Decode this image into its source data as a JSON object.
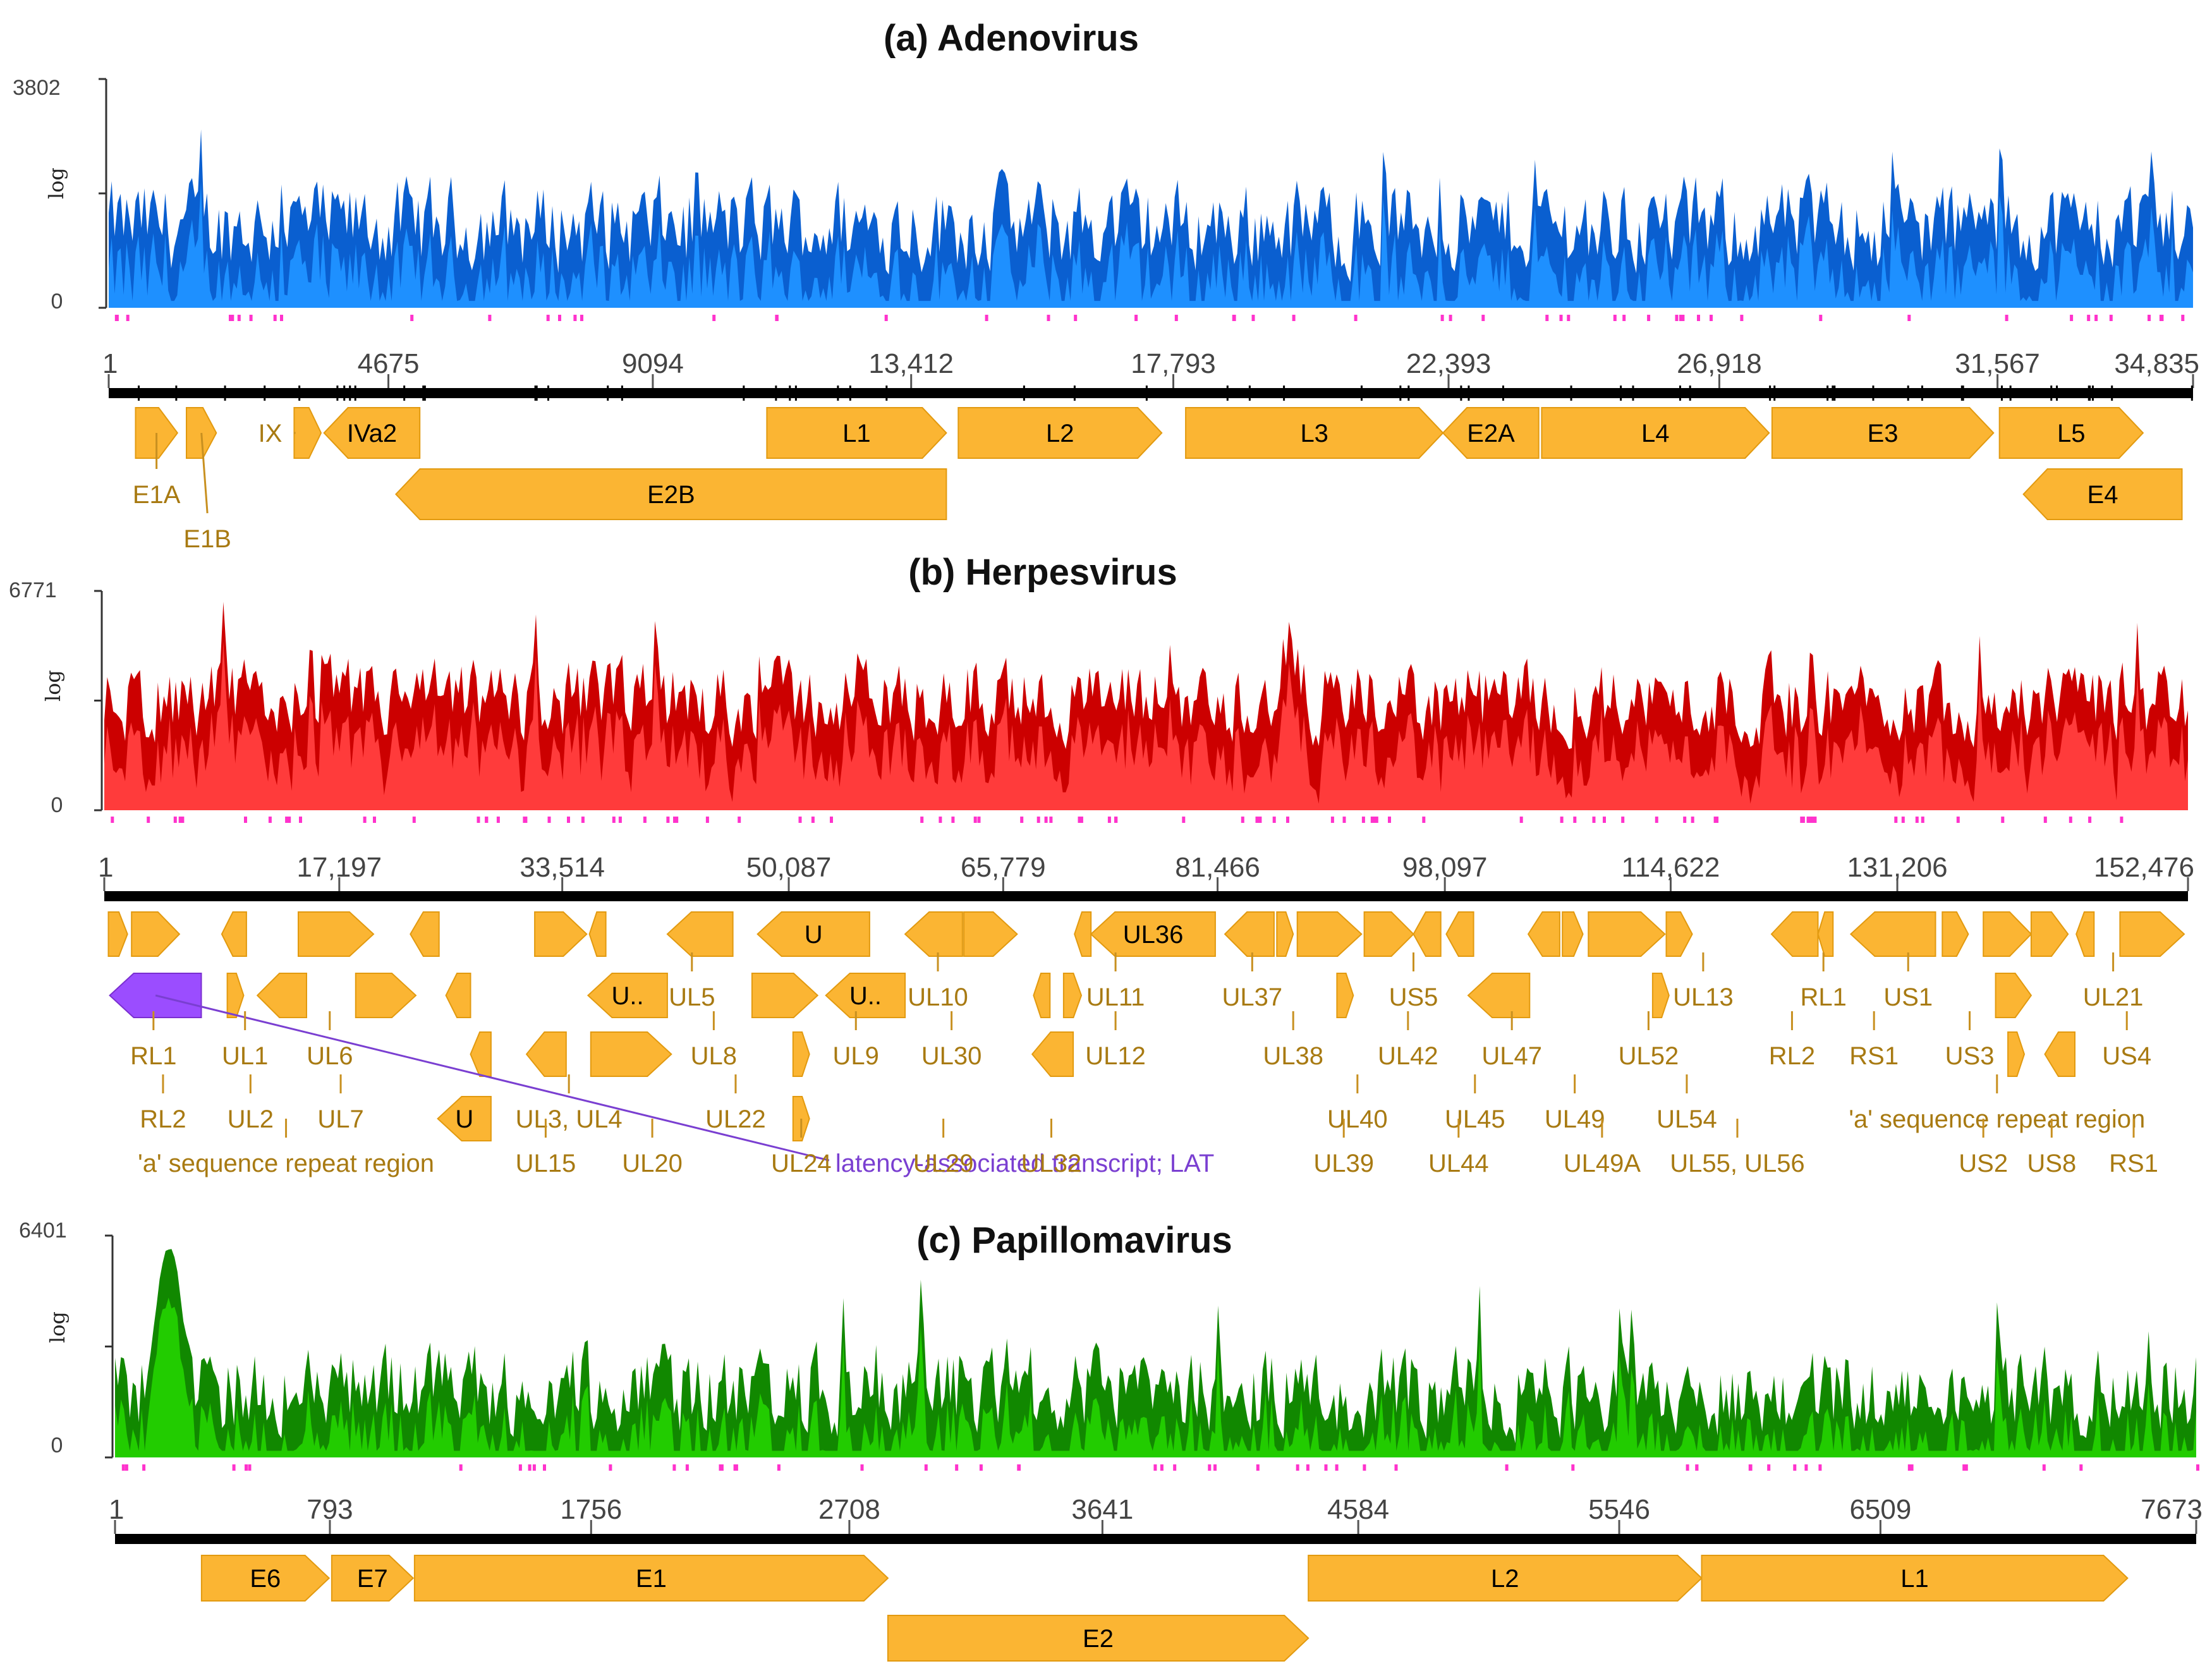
{
  "chart_data": [
    {
      "type": "area",
      "title": "(a) Adenovirus",
      "color": "#1e90ff",
      "dark_color": "#0a5fd0",
      "ylabel": "log",
      "ymax_label": "3802",
      "ymid_label": "",
      "ymin_label": "0",
      "genome_length": 34835,
      "x_ticks": [
        1,
        4675,
        9094,
        13412,
        17793,
        22393,
        26918,
        31567,
        34835
      ],
      "x_tick_labels": [
        "1",
        "4675",
        "9094",
        "13,412",
        "17,793",
        "22,393",
        "26,918",
        "31,567",
        "34,835"
      ],
      "coverage_profile": {
        "base": 0.36,
        "noise": 0.22,
        "peaks": []
      },
      "genes": [
        {
          "name": "E1A",
          "start": 450,
          "end": 1150,
          "strand": "+",
          "row": 0,
          "label_pos": "below",
          "label_x": 800,
          "label_row": 1
        },
        {
          "name": "E1B",
          "start": 1300,
          "end": 1800,
          "strand": "+",
          "row": 0,
          "label_pos": "below",
          "label_x": 1650,
          "label_row": 2
        },
        {
          "name": "IX",
          "start": 3100,
          "end": 3550,
          "strand": "+",
          "row": 0,
          "label_pos": "left",
          "label_x": 2700,
          "label_row": 0
        },
        {
          "name": "IVa2",
          "start": 3600,
          "end": 5200,
          "strand": "-",
          "row": 0,
          "label_pos": "inside"
        },
        {
          "name": "L1",
          "start": 11000,
          "end": 14000,
          "strand": "+",
          "row": 0,
          "label_pos": "inside"
        },
        {
          "name": "L2",
          "start": 14200,
          "end": 17600,
          "strand": "+",
          "row": 0,
          "label_pos": "inside"
        },
        {
          "name": "L3",
          "start": 18000,
          "end": 22300,
          "strand": "+",
          "row": 0,
          "label_pos": "inside"
        },
        {
          "name": "E2A",
          "start": 22300,
          "end": 23900,
          "strand": "-",
          "row": 0,
          "label_pos": "inside"
        },
        {
          "name": "L4",
          "start": 23950,
          "end": 27750,
          "strand": "+",
          "row": 0,
          "label_pos": "inside"
        },
        {
          "name": "E3",
          "start": 27800,
          "end": 31500,
          "strand": "+",
          "row": 0,
          "label_pos": "inside"
        },
        {
          "name": "L5",
          "start": 31600,
          "end": 34000,
          "strand": "+",
          "row": 0,
          "label_pos": "inside"
        },
        {
          "name": "E2B",
          "start": 4800,
          "end": 14000,
          "strand": "-",
          "row": 1,
          "label_pos": "inside"
        },
        {
          "name": "E4",
          "start": 32000,
          "end": 34650,
          "strand": "-",
          "row": 1,
          "label_pos": "inside"
        }
      ],
      "annotations": []
    },
    {
      "type": "area",
      "title": "(b) Herpesvirus",
      "color": "#ff3b3b",
      "dark_color": "#cc0000",
      "ylabel": "log",
      "ymax_label": "6771",
      "ymid_label": "",
      "ymin_label": "0",
      "genome_length": 152476,
      "x_ticks": [
        1,
        17197,
        33514,
        50087,
        65779,
        81466,
        98097,
        114622,
        131206,
        152476
      ],
      "x_tick_labels": [
        "1",
        "17,197",
        "33,514",
        "50,087",
        "65,779",
        "81,466",
        "98,097",
        "114,622",
        "131,206",
        "152,476"
      ],
      "coverage_profile": {
        "base": 0.5,
        "noise": 0.2,
        "peaks": []
      },
      "genes": [
        {
          "name": "",
          "start": 300,
          "end": 1700,
          "strand": "+",
          "row": 0
        },
        {
          "name": "",
          "start": 2000,
          "end": 5500,
          "strand": "+",
          "row": 0
        },
        {
          "name": "",
          "start": 8600,
          "end": 10400,
          "strand": "-",
          "row": 0
        },
        {
          "name": "",
          "start": 14200,
          "end": 19700,
          "strand": "+",
          "row": 0
        },
        {
          "name": "",
          "start": 22400,
          "end": 24500,
          "strand": "-",
          "row": 0
        },
        {
          "name": "",
          "start": 31500,
          "end": 35300,
          "strand": "+",
          "row": 0
        },
        {
          "name": "",
          "start": 35500,
          "end": 36700,
          "strand": "-",
          "row": 0
        },
        {
          "name": "",
          "start": 41200,
          "end": 46000,
          "strand": "-",
          "row": 0
        },
        {
          "name": "U",
          "start": 47800,
          "end": 56000,
          "strand": "-",
          "row": 0,
          "label_pos": "inside"
        },
        {
          "name": "",
          "start": 58600,
          "end": 62800,
          "strand": "-",
          "row": 0
        },
        {
          "name": "",
          "start": 62900,
          "end": 66800,
          "strand": "+",
          "row": 0
        },
        {
          "name": "",
          "start": 71000,
          "end": 72200,
          "strand": "-",
          "row": 0
        },
        {
          "name": "UL36",
          "start": 72200,
          "end": 81300,
          "strand": "-",
          "row": 0,
          "label_pos": "inside"
        },
        {
          "name": "",
          "start": 82000,
          "end": 85600,
          "strand": "-",
          "row": 0
        },
        {
          "name": "",
          "start": 85800,
          "end": 87000,
          "strand": "+",
          "row": 0
        },
        {
          "name": "",
          "start": 87300,
          "end": 92000,
          "strand": "+",
          "row": 0
        },
        {
          "name": "",
          "start": 92200,
          "end": 95800,
          "strand": "+",
          "row": 0
        },
        {
          "name": "",
          "start": 95800,
          "end": 97800,
          "strand": "-",
          "row": 0
        },
        {
          "name": "",
          "start": 98200,
          "end": 100200,
          "strand": "-",
          "row": 0
        },
        {
          "name": "",
          "start": 104200,
          "end": 106500,
          "strand": "-",
          "row": 0
        },
        {
          "name": "",
          "start": 106700,
          "end": 108200,
          "strand": "+",
          "row": 0
        },
        {
          "name": "",
          "start": 108600,
          "end": 114200,
          "strand": "+",
          "row": 0
        },
        {
          "name": "",
          "start": 114300,
          "end": 116200,
          "strand": "+",
          "row": 0
        },
        {
          "name": "",
          "start": 122000,
          "end": 125400,
          "strand": "-",
          "row": 0
        },
        {
          "name": "",
          "start": 125400,
          "end": 126500,
          "strand": "-",
          "row": 0
        },
        {
          "name": "",
          "start": 127800,
          "end": 134000,
          "strand": "-",
          "row": 0
        },
        {
          "name": "",
          "start": 134500,
          "end": 136400,
          "strand": "+",
          "row": 0
        },
        {
          "name": "",
          "start": 137500,
          "end": 141000,
          "strand": "+",
          "row": 0
        },
        {
          "name": "",
          "start": 141000,
          "end": 143700,
          "strand": "+",
          "row": 0
        },
        {
          "name": "",
          "start": 144300,
          "end": 145600,
          "strand": "-",
          "row": 0
        },
        {
          "name": "",
          "start": 147500,
          "end": 152200,
          "strand": "+",
          "row": 0
        },
        {
          "name": "",
          "start": 9000,
          "end": 10200,
          "strand": "+",
          "row": 1
        },
        {
          "name": "",
          "start": 11200,
          "end": 14800,
          "strand": "-",
          "row": 1
        },
        {
          "name": "",
          "start": 18400,
          "end": 22800,
          "strand": "+",
          "row": 1
        },
        {
          "name": "",
          "start": 25000,
          "end": 26800,
          "strand": "-",
          "row": 1
        },
        {
          "name": "U..",
          "start": 35400,
          "end": 41200,
          "strand": "-",
          "row": 1,
          "label_pos": "inside"
        },
        {
          "name": "",
          "start": 47400,
          "end": 52200,
          "strand": "+",
          "row": 1
        },
        {
          "name": "U..",
          "start": 52800,
          "end": 58600,
          "strand": "-",
          "row": 1,
          "label_pos": "inside"
        },
        {
          "name": "",
          "start": 68000,
          "end": 69200,
          "strand": "-",
          "row": 1
        },
        {
          "name": "",
          "start": 70200,
          "end": 71500,
          "strand": "+",
          "row": 1
        },
        {
          "name": "",
          "start": 90200,
          "end": 91400,
          "strand": "+",
          "row": 1
        },
        {
          "name": "",
          "start": 99800,
          "end": 104300,
          "strand": "-",
          "row": 1
        },
        {
          "name": "",
          "start": 113300,
          "end": 114500,
          "strand": "+",
          "row": 1
        },
        {
          "name": "",
          "start": 138400,
          "end": 141000,
          "strand": "+",
          "row": 1
        },
        {
          "name": "",
          "start": 26800,
          "end": 28300,
          "strand": "-",
          "row": 2
        },
        {
          "name": "",
          "start": 30900,
          "end": 33800,
          "strand": "-",
          "row": 2
        },
        {
          "name": "",
          "start": 35600,
          "end": 41500,
          "strand": "+",
          "row": 2
        },
        {
          "name": "",
          "start": 50400,
          "end": 51600,
          "strand": "+",
          "row": 2
        },
        {
          "name": "",
          "start": 67900,
          "end": 70900,
          "strand": "-",
          "row": 2
        },
        {
          "name": "",
          "start": 139300,
          "end": 140500,
          "strand": "+",
          "row": 2
        },
        {
          "name": "",
          "start": 142000,
          "end": 144200,
          "strand": "-",
          "row": 2
        },
        {
          "name": "U",
          "start": 24400,
          "end": 28300,
          "strand": "-",
          "row": 3,
          "label_pos": "inside"
        },
        {
          "name": "",
          "start": 50400,
          "end": 51600,
          "strand": "+",
          "row": 3
        }
      ],
      "special_gene": {
        "name": "latency-associated transcript; LAT",
        "start": 400,
        "end": 7100,
        "strand": "-",
        "row": 1,
        "color": "#9b4dff",
        "label_x": 53500,
        "label_row": 4
      },
      "annotations": [
        {
          "text": "UL5",
          "x": 43000,
          "row": 1
        },
        {
          "text": "UL10",
          "x": 61000,
          "row": 1
        },
        {
          "text": "UL11",
          "x": 74000,
          "row": 1
        },
        {
          "text": "UL37",
          "x": 84000,
          "row": 1
        },
        {
          "text": "US5",
          "x": 95800,
          "row": 1
        },
        {
          "text": "UL13",
          "x": 117000,
          "row": 1
        },
        {
          "text": "RL1",
          "x": 125800,
          "row": 1
        },
        {
          "text": "US1",
          "x": 132000,
          "row": 1
        },
        {
          "text": "UL21",
          "x": 147000,
          "row": 1
        },
        {
          "text": "UL8",
          "x": 44600,
          "row": 2
        },
        {
          "text": "UL9",
          "x": 55000,
          "row": 2
        },
        {
          "text": "UL30",
          "x": 62000,
          "row": 2
        },
        {
          "text": "UL12",
          "x": 74000,
          "row": 2
        },
        {
          "text": "UL38",
          "x": 87000,
          "row": 2
        },
        {
          "text": "UL42",
          "x": 95400,
          "row": 2
        },
        {
          "text": "UL47",
          "x": 103000,
          "row": 2
        },
        {
          "text": "UL52",
          "x": 113000,
          "row": 2
        },
        {
          "text": "RL2",
          "x": 123500,
          "row": 2
        },
        {
          "text": "RS1",
          "x": 129500,
          "row": 2
        },
        {
          "text": "US3",
          "x": 136500,
          "row": 2
        },
        {
          "text": "US4",
          "x": 148000,
          "row": 2
        },
        {
          "text": "RL1",
          "x": 3600,
          "row": 2
        },
        {
          "text": "UL1",
          "x": 10300,
          "row": 2
        },
        {
          "text": "UL6",
          "x": 16500,
          "row": 2
        },
        {
          "text": "RL2",
          "x": 4300,
          "row": 3
        },
        {
          "text": "UL2",
          "x": 10700,
          "row": 3
        },
        {
          "text": "UL7",
          "x": 17300,
          "row": 3
        },
        {
          "text": "UL3, UL4",
          "x": 34000,
          "row": 3
        },
        {
          "text": "UL22",
          "x": 46200,
          "row": 3
        },
        {
          "text": "UL40",
          "x": 91700,
          "row": 3
        },
        {
          "text": "UL45",
          "x": 100300,
          "row": 3
        },
        {
          "text": "UL49",
          "x": 107600,
          "row": 3
        },
        {
          "text": "UL54",
          "x": 115800,
          "row": 3
        },
        {
          "text": "'a' sequence repeat region",
          "x": 138500,
          "row": 3
        },
        {
          "text": "'a' sequence repeat region",
          "x": 13300,
          "row": 4
        },
        {
          "text": "UL15",
          "x": 32300,
          "row": 4
        },
        {
          "text": "UL20",
          "x": 40100,
          "row": 4
        },
        {
          "text": "UL24",
          "x": 51000,
          "row": 4
        },
        {
          "text": "UL29",
          "x": 61400,
          "row": 4
        },
        {
          "text": "UL32",
          "x": 69300,
          "row": 4
        },
        {
          "text": "UL39",
          "x": 90700,
          "row": 4
        },
        {
          "text": "UL44",
          "x": 99100,
          "row": 4
        },
        {
          "text": "UL49A",
          "x": 109600,
          "row": 4
        },
        {
          "text": "UL55, UL56",
          "x": 119500,
          "row": 4
        },
        {
          "text": "US2",
          "x": 137500,
          "row": 4
        },
        {
          "text": "US8",
          "x": 142500,
          "row": 4
        },
        {
          "text": "RS1",
          "x": 148500,
          "row": 4
        }
      ]
    },
    {
      "type": "area",
      "title": "(c) Papillomavirus",
      "color": "#22cc00",
      "dark_color": "#118800",
      "ylabel": "log",
      "ymax_label": "6401",
      "ymid_label": "",
      "ymin_label": "0",
      "genome_length": 7673,
      "x_ticks": [
        1,
        793,
        1756,
        2708,
        3641,
        4584,
        5546,
        6509,
        7673
      ],
      "x_tick_labels": [
        "1",
        "793",
        "1756",
        "2708",
        "3641",
        "4584",
        "5546",
        "6509",
        "7673"
      ],
      "coverage_profile": {
        "base": 0.3,
        "noise": 0.22,
        "peaks": [
          {
            "x": 200,
            "width": 120,
            "height": 0.95
          }
        ]
      },
      "genes": [
        {
          "name": "E6",
          "start": 320,
          "end": 790,
          "strand": "+",
          "row": 0,
          "label_pos": "inside"
        },
        {
          "name": "E7",
          "start": 800,
          "end": 1100,
          "strand": "+",
          "row": 0,
          "label_pos": "inside"
        },
        {
          "name": "E1",
          "start": 1105,
          "end": 2850,
          "strand": "+",
          "row": 0,
          "label_pos": "inside"
        },
        {
          "name": "L2",
          "start": 4400,
          "end": 5850,
          "strand": "+",
          "row": 0,
          "label_pos": "inside"
        },
        {
          "name": "L1",
          "start": 5850,
          "end": 7420,
          "strand": "+",
          "row": 0,
          "label_pos": "inside"
        },
        {
          "name": "E2",
          "start": 2850,
          "end": 4400,
          "strand": "+",
          "row": 1,
          "label_pos": "inside"
        }
      ],
      "annotations": []
    }
  ]
}
